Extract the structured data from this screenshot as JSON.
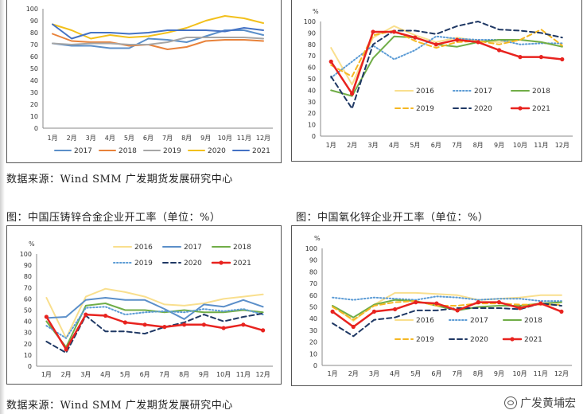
{
  "source_top": "数据来源：Wind   SMM  广发期货发展研究中心",
  "source_bottom": "数据来源：Wind   SMM  广发期货发展研究中心",
  "title_left": "图：中国压铸锌合金企业开工率（单位：%）",
  "title_right": "图：中国氧化锌企业开工率（单位：%）",
  "watermark": "广发黄埔宏",
  "chart_data": [
    {
      "id": "c1",
      "type": "line",
      "title": "",
      "unit_label": "",
      "categories": [
        "1月",
        "2月",
        "3月",
        "4月",
        "5月",
        "6月",
        "7月",
        "8月",
        "9月",
        "10月",
        "11月",
        "12月"
      ],
      "yticks": [
        0,
        10,
        20,
        30,
        40,
        50,
        60,
        70,
        80,
        90,
        100
      ],
      "ylim": [
        0,
        100
      ],
      "legend_position": "bottom",
      "legend_columns": 5,
      "series": [
        {
          "name": "2017",
          "color": "#5b8fc9",
          "style": "solid",
          "width": 2,
          "marker": false,
          "values": [
            71,
            69,
            69,
            67,
            67,
            75,
            74,
            72,
            77,
            82,
            82,
            78
          ]
        },
        {
          "name": "2018",
          "color": "#e8823a",
          "style": "solid",
          "width": 2,
          "marker": false,
          "values": [
            79,
            73,
            72,
            72,
            69,
            70,
            66,
            68,
            73,
            74,
            74,
            73
          ]
        },
        {
          "name": "2019",
          "color": "#a6a6a6",
          "style": "solid",
          "width": 2,
          "marker": false,
          "values": [
            71,
            70,
            71,
            71,
            70,
            70,
            72,
            76,
            76,
            76,
            76,
            75
          ]
        },
        {
          "name": "2020",
          "color": "#f2c01c",
          "style": "solid",
          "width": 2,
          "marker": false,
          "values": [
            87,
            82,
            75,
            78,
            76,
            77,
            80,
            84,
            90,
            94,
            92,
            88
          ]
        },
        {
          "name": "2021",
          "color": "#4472c4",
          "style": "solid",
          "width": 2,
          "marker": false,
          "values": [
            87,
            75,
            80,
            80,
            79,
            80,
            82,
            82,
            82,
            81,
            84,
            82
          ]
        }
      ]
    },
    {
      "id": "c2",
      "type": "line",
      "title": "",
      "unit_label": "%",
      "categories": [
        "1月",
        "2月",
        "3月",
        "4月",
        "5月",
        "6月",
        "7月",
        "8月",
        "9月",
        "10月",
        "11月",
        "12月"
      ],
      "yticks": [
        0,
        10,
        20,
        30,
        40,
        50,
        60,
        70,
        80,
        90,
        100
      ],
      "ylim": [
        0,
        100
      ],
      "legend_position": "bottom",
      "legend_columns": 3,
      "series": [
        {
          "name": "2016",
          "color": "#f9df8e",
          "style": "solid",
          "width": 2,
          "marker": false,
          "values": [
            77,
            45,
            86,
            96,
            88,
            82,
            86,
            83,
            82,
            84,
            82,
            78
          ]
        },
        {
          "name": "2017",
          "color": "#5b9bd5",
          "style": "dotted",
          "width": 2,
          "marker": false,
          "values": [
            51,
            65,
            79,
            67,
            75,
            87,
            85,
            84,
            84,
            80,
            81,
            81
          ]
        },
        {
          "name": "2018",
          "color": "#70ad47",
          "style": "solid",
          "width": 2,
          "marker": false,
          "values": [
            40,
            35,
            68,
            87,
            86,
            80,
            78,
            82,
            84,
            84,
            82,
            78
          ]
        },
        {
          "name": "2019",
          "color": "#f5b722",
          "style": "dashed",
          "width": 2,
          "marker": false,
          "values": [
            62,
            52,
            88,
            92,
            83,
            77,
            82,
            83,
            80,
            84,
            93,
            79
          ]
        },
        {
          "name": "2020",
          "color": "#1f3864",
          "style": "dashed",
          "width": 2,
          "marker": false,
          "values": [
            52,
            24,
            80,
            92,
            92,
            89,
            96,
            100,
            93,
            92,
            90,
            86
          ]
        },
        {
          "name": "2021",
          "color": "#e8231f",
          "style": "solid",
          "width": 2.5,
          "marker": true,
          "values": [
            65,
            37,
            91,
            91,
            86,
            80,
            84,
            82,
            75,
            69,
            69,
            67
          ]
        }
      ]
    },
    {
      "id": "c3",
      "type": "line",
      "title": "",
      "unit_label": "%",
      "categories": [
        "1月",
        "2月",
        "3月",
        "4月",
        "5月",
        "6月",
        "7月",
        "8月",
        "9月",
        "10月",
        "11月",
        "12月"
      ],
      "yticks": [
        0,
        10,
        20,
        30,
        40,
        50,
        60,
        70,
        80,
        90,
        100
      ],
      "ylim": [
        0,
        100
      ],
      "legend_position": "top",
      "legend_columns": 3,
      "series": [
        {
          "name": "2016",
          "color": "#f9df8e",
          "style": "solid",
          "width": 2,
          "marker": false,
          "values": [
            61,
            25,
            62,
            69,
            66,
            62,
            55,
            54,
            56,
            60,
            62,
            64
          ]
        },
        {
          "name": "2017",
          "color": "#5b8fc9",
          "style": "solid",
          "width": 2,
          "marker": false,
          "values": [
            43,
            44,
            59,
            61,
            59,
            59,
            51,
            42,
            55,
            53,
            59,
            53
          ]
        },
        {
          "name": "2018",
          "color": "#70ad47",
          "style": "solid",
          "width": 2,
          "marker": false,
          "values": [
            40,
            17,
            54,
            56,
            50,
            50,
            48,
            50,
            48,
            48,
            50,
            48
          ]
        },
        {
          "name": "2019",
          "color": "#5b9bd5",
          "style": "dotted",
          "width": 2,
          "marker": false,
          "values": [
            36,
            25,
            52,
            53,
            46,
            48,
            49,
            48,
            51,
            49,
            51,
            46
          ]
        },
        {
          "name": "2020",
          "color": "#1f3864",
          "style": "dashed",
          "width": 2,
          "marker": false,
          "values": [
            22,
            12,
            45,
            31,
            31,
            29,
            35,
            39,
            46,
            40,
            44,
            47
          ]
        },
        {
          "name": "2021",
          "color": "#e8231f",
          "style": "solid",
          "width": 2.5,
          "marker": true,
          "values": [
            44,
            15,
            46,
            45,
            39,
            37,
            35,
            37,
            37,
            34,
            37,
            32
          ]
        }
      ]
    },
    {
      "id": "c4",
      "type": "line",
      "title": "",
      "unit_label": "%",
      "categories": [
        "1月",
        "2月",
        "3月",
        "4月",
        "5月",
        "6月",
        "7月",
        "8月",
        "9月",
        "10月",
        "11月",
        "12月"
      ],
      "yticks": [
        0,
        10,
        20,
        30,
        40,
        50,
        60,
        70,
        80,
        90,
        100
      ],
      "ylim": [
        0,
        100
      ],
      "legend_position": "bottom",
      "legend_columns": 3,
      "series": [
        {
          "name": "2016",
          "color": "#f9df8e",
          "style": "solid",
          "width": 2,
          "marker": false,
          "values": [
            51,
            38,
            52,
            62,
            62,
            61,
            60,
            56,
            57,
            58,
            60,
            60
          ]
        },
        {
          "name": "2017",
          "color": "#5b9bd5",
          "style": "dotted",
          "width": 2,
          "marker": false,
          "values": [
            58,
            56,
            58,
            57,
            56,
            59,
            58,
            56,
            57,
            57,
            55,
            55
          ]
        },
        {
          "name": "2018",
          "color": "#70ad47",
          "style": "solid",
          "width": 2,
          "marker": false,
          "values": [
            51,
            41,
            52,
            56,
            55,
            51,
            47,
            50,
            51,
            51,
            53,
            54
          ]
        },
        {
          "name": "2019",
          "color": "#f5b722",
          "style": "dashed",
          "width": 2,
          "marker": false,
          "values": [
            50,
            39,
            51,
            54,
            55,
            51,
            51,
            53,
            53,
            52,
            52,
            52
          ]
        },
        {
          "name": "2020",
          "color": "#1f3864",
          "style": "dashed",
          "width": 2,
          "marker": false,
          "values": [
            36,
            25,
            39,
            41,
            47,
            47,
            49,
            49,
            49,
            48,
            53,
            51
          ]
        },
        {
          "name": "2021",
          "color": "#e8231f",
          "style": "solid",
          "width": 2.5,
          "marker": true,
          "values": [
            46,
            33,
            46,
            48,
            54,
            53,
            47,
            54,
            54,
            49,
            53,
            46
          ]
        }
      ]
    }
  ]
}
